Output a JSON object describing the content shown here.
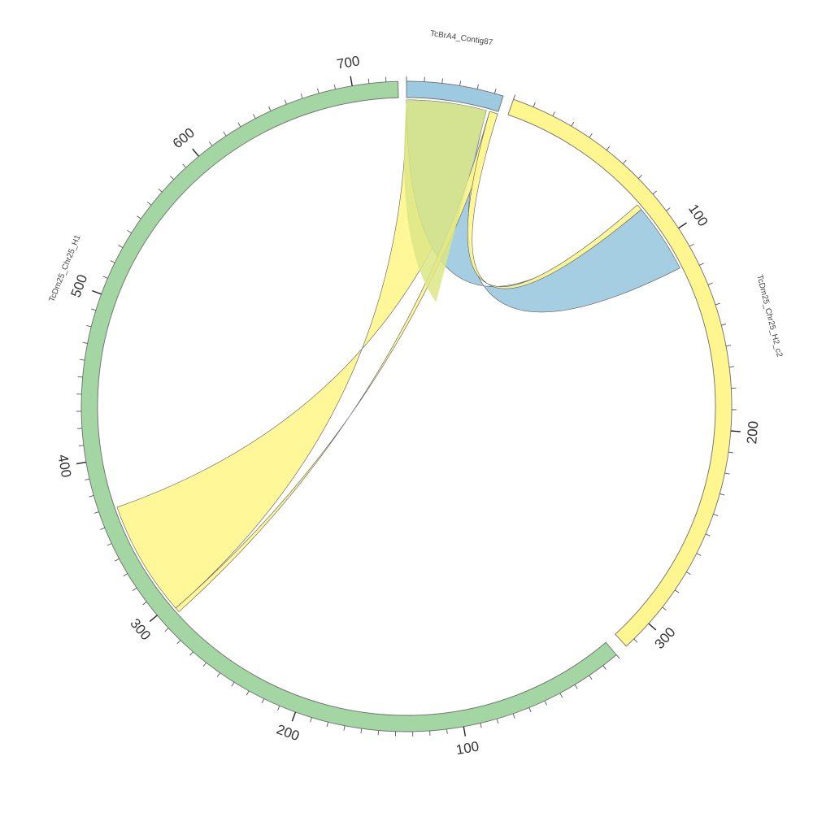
{
  "diagram": {
    "type": "chord",
    "colors": {
      "green": "#a3d6a2",
      "blue": "#9ecae1",
      "yellow": "#fff68f",
      "olive": "#dce685",
      "ribbon_stroke": "#5a5a5a",
      "tick": "#555555"
    },
    "segments": [
      {
        "id": "h1",
        "name": "TcDm25_Chr25_H1",
        "color": "green",
        "length": 727,
        "tick_labels": [
          "100",
          "200",
          "300",
          "400",
          "500",
          "600",
          "700"
        ]
      },
      {
        "id": "contig",
        "name": "TcBrA4_Contig87",
        "color": "blue",
        "length": 55,
        "tick_labels": []
      },
      {
        "id": "h2",
        "name": "TcDm25_Chr25_H2_c2",
        "color": "yellow",
        "length": 315,
        "tick_labels": [
          "100",
          "200",
          "300"
        ]
      }
    ],
    "links": [
      {
        "from": [
          "contig",
          0,
          48
        ],
        "to": [
          "h1",
          296,
          369
        ],
        "color": "yellow",
        "note": "large band"
      },
      {
        "from": [
          "contig",
          0,
          48
        ],
        "to": [
          "h2",
          82,
          117
        ],
        "color": "blue",
        "note": "blue band"
      },
      {
        "from": [
          "contig",
          50,
          55
        ],
        "to": [
          "h1",
          293,
          296
        ],
        "color": "yellow",
        "note": "thin strands"
      },
      {
        "from": [
          "contig",
          50,
          55
        ],
        "to": [
          "h2",
          79,
          82
        ],
        "color": "yellow",
        "note": "thin strands"
      }
    ]
  }
}
